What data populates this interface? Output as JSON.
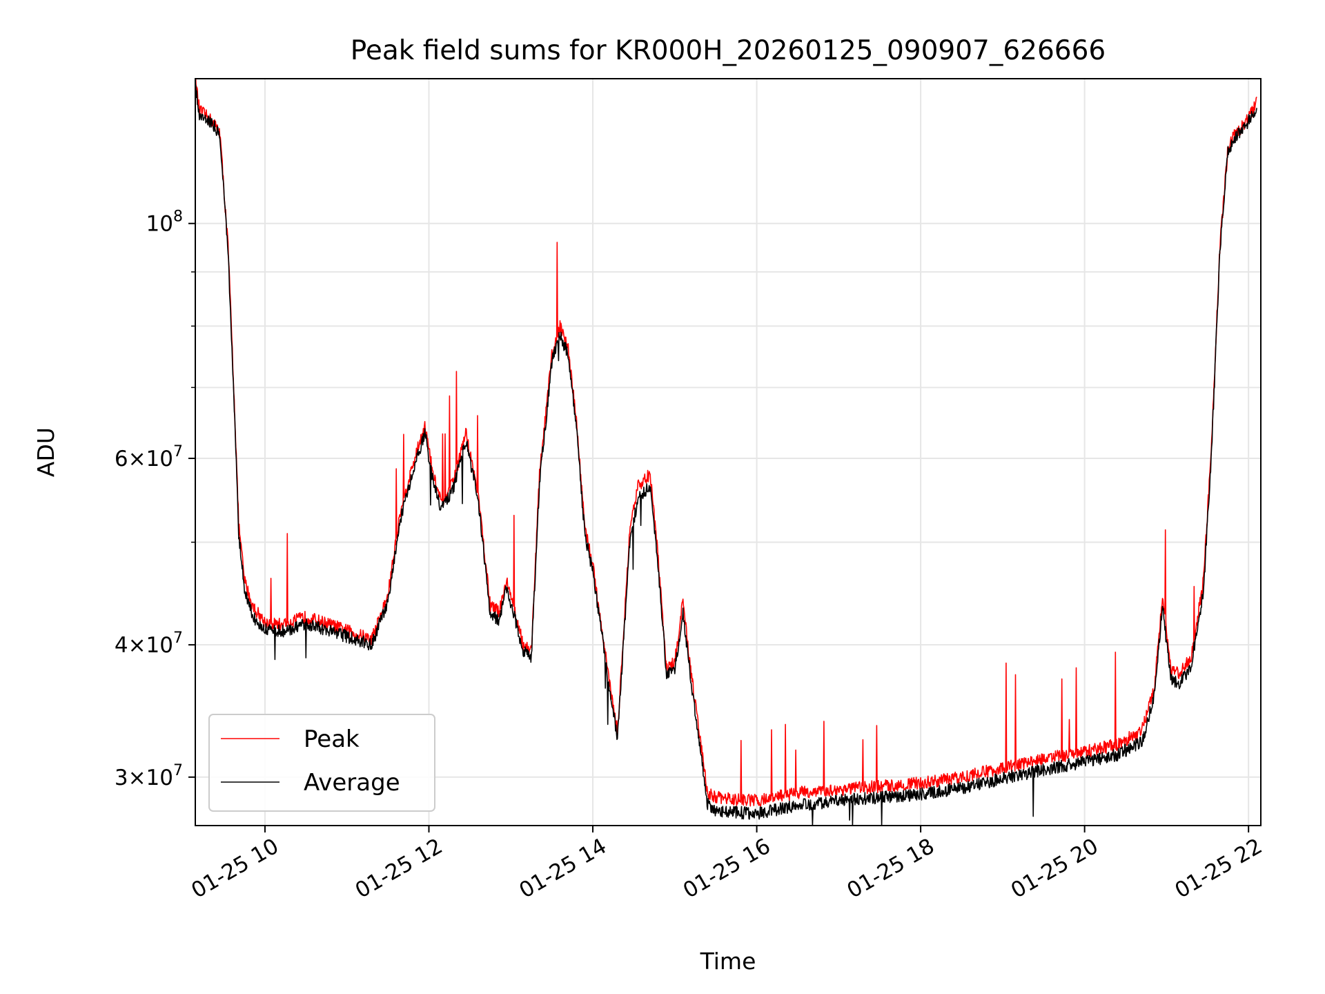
{
  "chart_data": {
    "type": "line",
    "title": "Peak field sums for KR000H_20260125_090907_626666",
    "xlabel": "Time",
    "ylabel": "ADU",
    "yscale": "log",
    "xlim_hours": [
      9.15,
      22.15
    ],
    "ylim": [
      27000000,
      137000000
    ],
    "grid": true,
    "legend_position": "lower-left",
    "x_ticks": [
      {
        "value": 10,
        "label": "01-25 10"
      },
      {
        "value": 12,
        "label": "01-25 12"
      },
      {
        "value": 14,
        "label": "01-25 14"
      },
      {
        "value": 16,
        "label": "01-25 16"
      },
      {
        "value": 18,
        "label": "01-25 18"
      },
      {
        "value": 20,
        "label": "01-25 20"
      },
      {
        "value": 22,
        "label": "01-25 22"
      }
    ],
    "y_ticks": [
      {
        "value": 100000000,
        "mantissa": "",
        "base": "10",
        "exp": "8"
      },
      {
        "value": 60000000,
        "mantissa": "6",
        "base": "10",
        "exp": "7"
      },
      {
        "value": 40000000,
        "mantissa": "4",
        "base": "10",
        "exp": "7"
      },
      {
        "value": 30000000,
        "mantissa": "3",
        "base": "10",
        "exp": "7"
      }
    ],
    "y_minor_ticks": [
      50000000,
      70000000,
      80000000,
      90000000
    ],
    "series": [
      {
        "name": "Peak",
        "color": "#ff0000",
        "x": [
          9.15,
          9.2,
          9.35,
          9.45,
          9.55,
          9.62,
          9.68,
          9.75,
          9.85,
          10.0,
          10.2,
          10.5,
          10.8,
          11.1,
          11.3,
          11.5,
          11.65,
          11.8,
          11.95,
          12.05,
          12.15,
          12.3,
          12.45,
          12.6,
          12.75,
          12.85,
          12.95,
          13.05,
          13.15,
          13.25,
          13.35,
          13.5,
          13.6,
          13.7,
          13.8,
          13.9,
          14.0,
          14.1,
          14.2,
          14.3,
          14.45,
          14.55,
          14.7,
          14.8,
          14.9,
          15.0,
          15.1,
          15.2,
          15.3,
          15.4,
          15.5,
          15.7,
          16.0,
          16.5,
          17.0,
          17.5,
          18.0,
          18.5,
          19.0,
          19.5,
          20.0,
          20.4,
          20.7,
          20.85,
          20.95,
          21.05,
          21.15,
          21.3,
          21.45,
          21.55,
          21.65,
          21.75,
          21.85,
          21.95,
          22.05,
          22.1
        ],
        "y": [
          137000000,
          128000000,
          125000000,
          122000000,
          95000000,
          70000000,
          52000000,
          46000000,
          43500000,
          42000000,
          41800000,
          42500000,
          41800000,
          41000000,
          40500000,
          44500000,
          53500000,
          59000000,
          64500000,
          58000000,
          54500000,
          57000000,
          63500000,
          55500000,
          43500000,
          43000000,
          46000000,
          43000000,
          40000000,
          39500000,
          58000000,
          75000000,
          80000000,
          76000000,
          65000000,
          52000000,
          47500000,
          42000000,
          37000000,
          33000000,
          51000000,
          56500000,
          58000000,
          48000000,
          38000000,
          38500000,
          44000000,
          37500000,
          33000000,
          29000000,
          28700000,
          28600000,
          28500000,
          29000000,
          29200000,
          29400000,
          29600000,
          30000000,
          30600000,
          31200000,
          31700000,
          32200000,
          33200000,
          36500000,
          44500000,
          38000000,
          37500000,
          39000000,
          46000000,
          62000000,
          95000000,
          118000000,
          122000000,
          124000000,
          128000000,
          130000000
        ]
      },
      {
        "name": "Average",
        "color": "#000000",
        "x": [
          9.15,
          9.2,
          9.35,
          9.45,
          9.55,
          9.62,
          9.68,
          9.75,
          9.85,
          10.0,
          10.2,
          10.5,
          10.8,
          11.1,
          11.3,
          11.5,
          11.65,
          11.8,
          11.95,
          12.05,
          12.15,
          12.3,
          12.45,
          12.6,
          12.75,
          12.85,
          12.95,
          13.05,
          13.15,
          13.25,
          13.35,
          13.5,
          13.6,
          13.7,
          13.8,
          13.9,
          14.0,
          14.1,
          14.2,
          14.3,
          14.45,
          14.55,
          14.7,
          14.8,
          14.9,
          15.0,
          15.1,
          15.2,
          15.3,
          15.4,
          15.5,
          15.7,
          16.0,
          16.5,
          17.0,
          17.5,
          18.0,
          18.5,
          19.0,
          19.5,
          20.0,
          20.4,
          20.7,
          20.85,
          20.95,
          21.05,
          21.15,
          21.3,
          21.45,
          21.55,
          21.65,
          21.75,
          21.85,
          21.95,
          22.05,
          22.1
        ],
        "y": [
          135000000,
          127000000,
          124500000,
          121500000,
          94000000,
          69000000,
          51000000,
          45000000,
          42500000,
          41500000,
          41200000,
          41800000,
          41200000,
          40500000,
          40000000,
          43800000,
          52500000,
          58000000,
          63500000,
          57000000,
          53800000,
          56200000,
          62500000,
          54800000,
          42800000,
          42200000,
          45200000,
          42300000,
          39500000,
          39000000,
          57000000,
          74000000,
          78500000,
          75000000,
          64000000,
          51000000,
          46800000,
          41500000,
          36500000,
          32500000,
          50000000,
          55000000,
          56500000,
          47000000,
          37500000,
          37800000,
          43000000,
          36800000,
          32300000,
          28300000,
          27900000,
          27800000,
          27700000,
          28200000,
          28500000,
          28700000,
          28900000,
          29300000,
          29900000,
          30500000,
          31000000,
          31500000,
          32400000,
          35800000,
          43500000,
          37200000,
          36700000,
          38200000,
          45000000,
          61000000,
          94000000,
          117000000,
          121000000,
          123000000,
          127000000,
          129000000
        ]
      }
    ]
  }
}
